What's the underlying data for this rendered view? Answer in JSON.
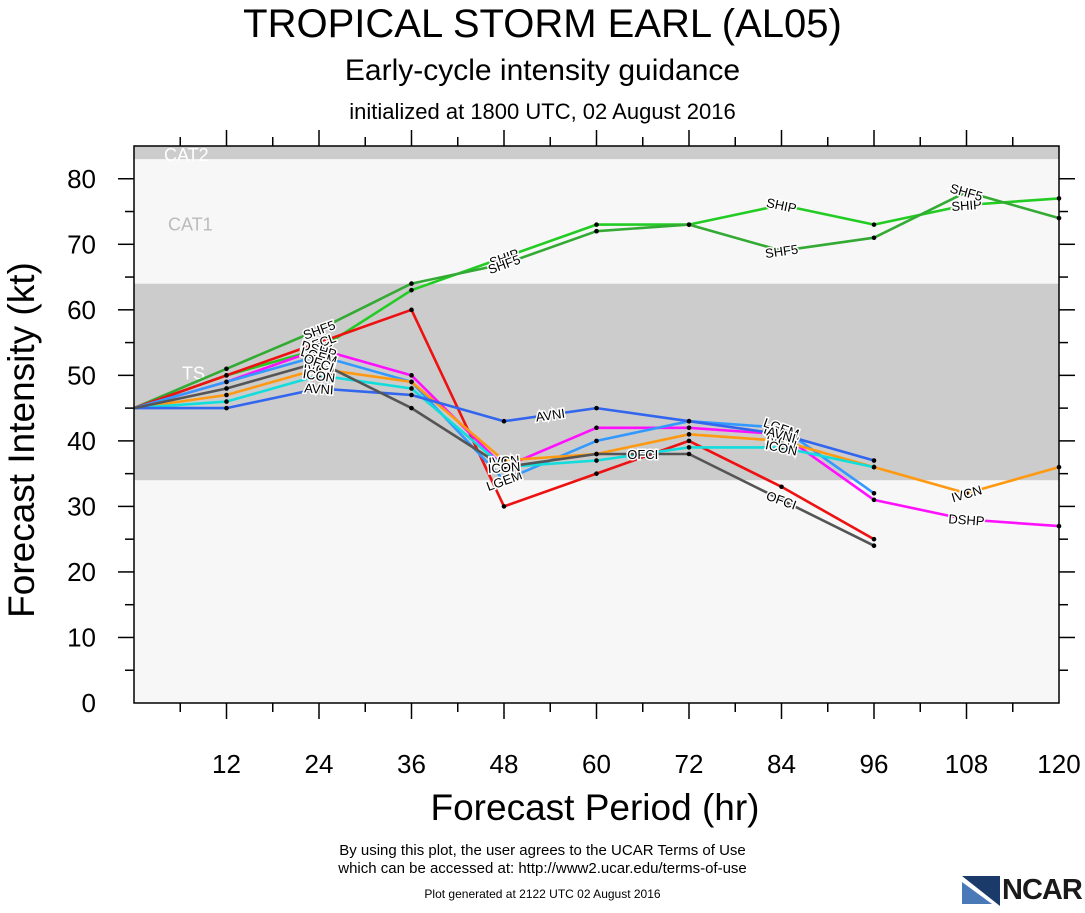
{
  "title": "TROPICAL STORM EARL (AL05)",
  "subtitle": "Early-cycle intensity guidance",
  "initialized": "initialized at 1800 UTC, 02 August 2016",
  "footer": {
    "terms_line1": "By using this plot, the user agrees to the UCAR Terms of Use",
    "terms_line2": "which can be accessed at: http://www2.ucar.edu/terms-of-use",
    "generated": "Plot generated at 2122 UTC   02 August 2016"
  },
  "logo": {
    "text": "NCAR"
  },
  "chart_data": {
    "type": "line",
    "xlabel": "Forecast Period (hr)",
    "ylabel": "Forecast Intensity (kt)",
    "xlim": [
      0,
      120
    ],
    "ylim": [
      0,
      85
    ],
    "x_ticks": [
      12,
      24,
      36,
      48,
      60,
      72,
      84,
      96,
      108,
      120
    ],
    "y_ticks": [
      0,
      10,
      20,
      30,
      40,
      50,
      60,
      70,
      80
    ],
    "bands": [
      {
        "label": "TS",
        "range": [
          34,
          64
        ],
        "color": "#cccccc"
      },
      {
        "label": "CAT1",
        "range": [
          64,
          83
        ],
        "color": "#f7f7f7"
      },
      {
        "label": "CAT2",
        "range": [
          83,
          96
        ],
        "color": "#cccccc"
      }
    ],
    "series": [
      {
        "name": "SHIP",
        "color": "#22cc22",
        "points": [
          [
            0,
            45
          ],
          [
            12,
            50
          ],
          [
            24,
            54
          ],
          [
            36,
            63
          ],
          [
            48,
            68
          ],
          [
            60,
            73
          ],
          [
            72,
            73
          ],
          [
            84,
            76
          ],
          [
            96,
            73
          ],
          [
            108,
            76
          ],
          [
            120,
            77
          ]
        ],
        "label_at": [
          24,
          48,
          84,
          108
        ]
      },
      {
        "name": "SHF5",
        "color": "#33aa33",
        "points": [
          [
            0,
            45
          ],
          [
            12,
            51
          ],
          [
            24,
            57
          ],
          [
            36,
            64
          ],
          [
            48,
            67
          ],
          [
            60,
            72
          ],
          [
            72,
            73
          ],
          [
            84,
            69
          ],
          [
            96,
            71
          ],
          [
            108,
            78
          ],
          [
            120,
            74
          ]
        ],
        "label_at": [
          24,
          48,
          84,
          108
        ]
      },
      {
        "name": "OFCL",
        "color": "#ee1111",
        "points": [
          [
            0,
            45
          ],
          [
            12,
            50
          ],
          [
            24,
            55
          ],
          [
            36,
            60
          ],
          [
            48,
            30
          ],
          [
            60,
            35
          ],
          [
            72,
            40
          ],
          [
            84,
            33
          ],
          [
            96,
            25
          ]
        ],
        "label_at": [
          24
        ]
      },
      {
        "name": "DSHP",
        "color": "#ff11ff",
        "points": [
          [
            0,
            45
          ],
          [
            12,
            49
          ],
          [
            24,
            54
          ],
          [
            36,
            50
          ],
          [
            48,
            36
          ],
          [
            60,
            42
          ],
          [
            72,
            42
          ],
          [
            84,
            41
          ],
          [
            96,
            31
          ],
          [
            108,
            28
          ],
          [
            120,
            27
          ]
        ],
        "label_at": [
          24,
          84,
          108
        ]
      },
      {
        "name": "LGEM",
        "color": "#3399ff",
        "points": [
          [
            0,
            45
          ],
          [
            12,
            49
          ],
          [
            24,
            53
          ],
          [
            36,
            49
          ],
          [
            48,
            34
          ],
          [
            60,
            40
          ],
          [
            72,
            43
          ],
          [
            84,
            42
          ],
          [
            96,
            32
          ]
        ],
        "label_at": [
          24,
          48,
          84
        ]
      },
      {
        "name": "IVCN",
        "color": "#ff9911",
        "points": [
          [
            0,
            45
          ],
          [
            12,
            47
          ],
          [
            24,
            51
          ],
          [
            36,
            49
          ],
          [
            48,
            37
          ],
          [
            60,
            38
          ],
          [
            72,
            41
          ],
          [
            84,
            40
          ],
          [
            96,
            36
          ],
          [
            108,
            32
          ],
          [
            120,
            36
          ]
        ],
        "label_at": [
          24,
          48,
          84,
          108
        ]
      },
      {
        "name": "ICON",
        "color": "#11dddd",
        "points": [
          [
            0,
            45
          ],
          [
            12,
            46
          ],
          [
            24,
            50
          ],
          [
            36,
            48
          ],
          [
            48,
            36
          ],
          [
            60,
            37
          ],
          [
            72,
            39
          ],
          [
            84,
            39
          ],
          [
            96,
            36
          ]
        ],
        "label_at": [
          24,
          48,
          84
        ]
      },
      {
        "name": "AVNI",
        "color": "#3366ee",
        "points": [
          [
            0,
            45
          ],
          [
            12,
            45
          ],
          [
            24,
            48
          ],
          [
            36,
            47
          ],
          [
            48,
            43
          ],
          [
            60,
            45
          ],
          [
            72,
            43
          ],
          [
            84,
            41
          ],
          [
            96,
            37
          ]
        ],
        "label_at": [
          24,
          54,
          84
        ]
      },
      {
        "name": "OFCI",
        "color": "#555555",
        "points": [
          [
            0,
            45
          ],
          [
            12,
            48
          ],
          [
            24,
            52
          ],
          [
            36,
            45
          ],
          [
            48,
            36
          ],
          [
            60,
            38
          ],
          [
            72,
            38
          ],
          [
            84,
            31
          ],
          [
            96,
            24
          ]
        ],
        "label_at": [
          24,
          66,
          84
        ]
      }
    ]
  }
}
